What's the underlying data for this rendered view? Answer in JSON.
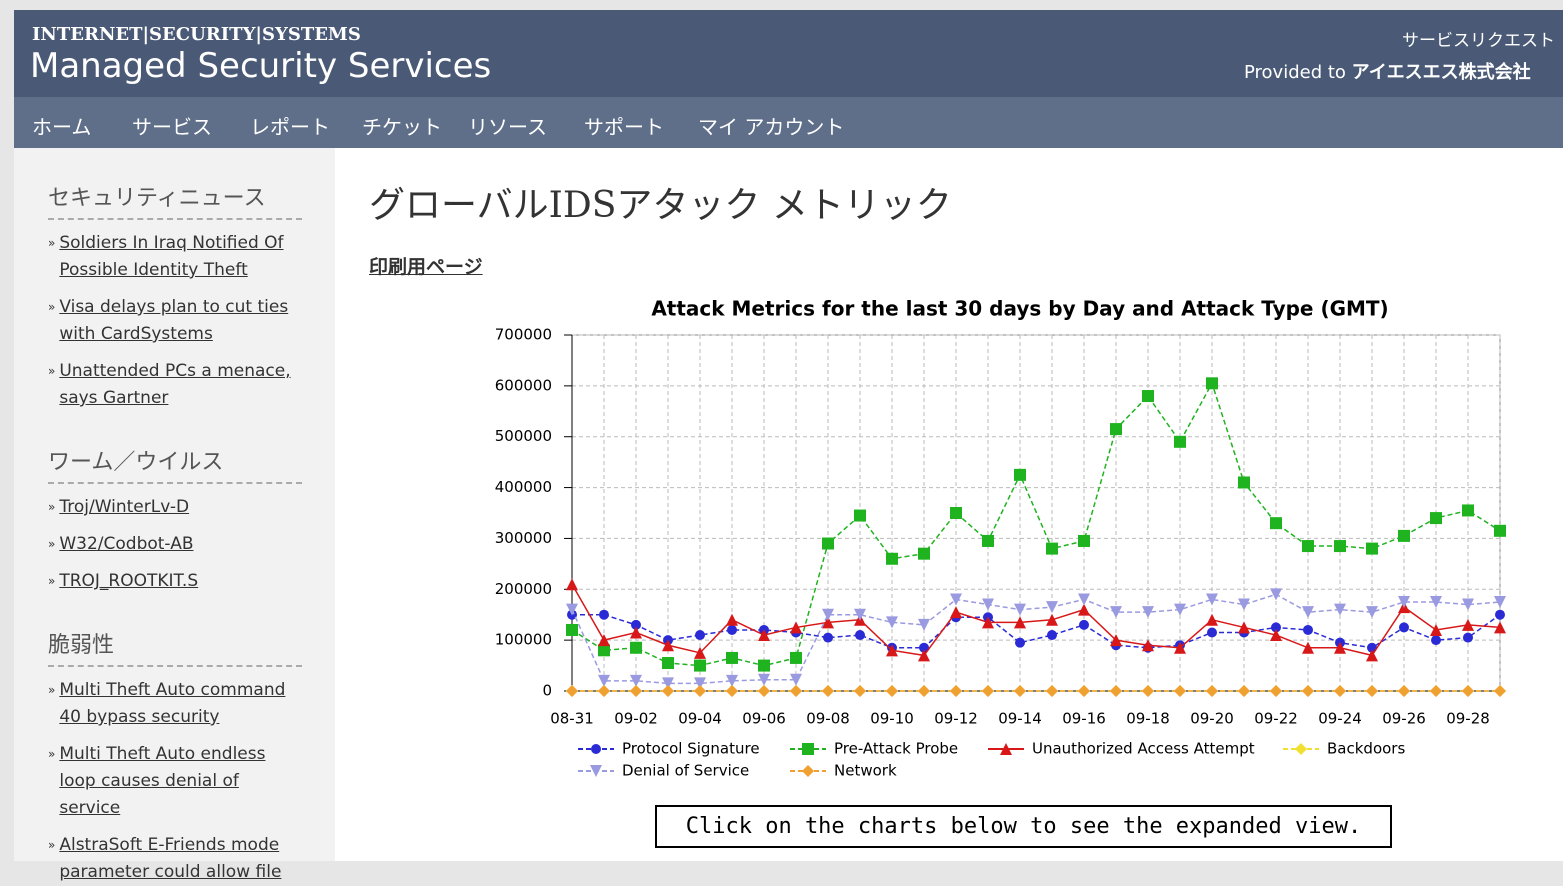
{
  "header": {
    "brand": "INTERNET|SECURITY|SYSTEMS",
    "product": "Managed Security Services",
    "service_request": "サービスリクエスト",
    "provided_to": "Provided to",
    "company": "アイエスエス株式会社"
  },
  "nav": [
    "ホーム",
    "サービス",
    "レポート",
    "チケット",
    "リソース",
    "サポート",
    "マイ アカウント"
  ],
  "sidebar": [
    {
      "title": "セキュリティニュース",
      "items": [
        "Soldiers In Iraq Notified Of Possible Identity Theft",
        "Visa delays plan to cut ties with CardSystems",
        "Unattended PCs a menace, says Gartner"
      ]
    },
    {
      "title": "ワーム／ウイルス",
      "items": [
        "Troj/WinterLv-D",
        "W32/Codbot-AB",
        "TROJ_ROOTKIT.S"
      ]
    },
    {
      "title": "脆弱性",
      "items": [
        "Multi Theft Auto command 40 bypass security",
        "Multi Theft Auto endless loop causes denial of service",
        "AlstraSoft E-Friends mode parameter could allow file"
      ]
    }
  ],
  "page_title": "グローバルIDSアタック メトリック",
  "print_link": "印刷用ページ",
  "chart_data": {
    "type": "line",
    "title": "Attack Metrics for the last 30 days by Day and Attack Type (GMT)",
    "categories": [
      "08-31",
      null,
      "09-02",
      null,
      "09-04",
      null,
      "09-06",
      null,
      "09-08",
      null,
      "09-10",
      null,
      "09-12",
      null,
      "09-14",
      null,
      "09-16",
      null,
      "09-18",
      null,
      "09-20",
      null,
      "09-22",
      null,
      "09-24",
      null,
      "09-26",
      null,
      "09-28",
      null
    ],
    "ylim": [
      0,
      700000
    ],
    "yticks": [
      0,
      100000,
      200000,
      300000,
      400000,
      500000,
      600000,
      700000
    ],
    "grid": true,
    "series": [
      {
        "name": "Protocol Signature",
        "color": "#2b2bd6",
        "marker": "circle",
        "values": [
          150000,
          150000,
          130000,
          100000,
          110000,
          120000,
          120000,
          115000,
          105000,
          110000,
          85000,
          85000,
          145000,
          145000,
          95000,
          110000,
          130000,
          90000,
          85000,
          90000,
          115000,
          115000,
          125000,
          120000,
          95000,
          85000,
          125000,
          100000,
          105000,
          150000
        ]
      },
      {
        "name": "Pre-Attack Probe",
        "color": "#1fb31f",
        "marker": "square",
        "values": [
          120000,
          80000,
          85000,
          55000,
          50000,
          65000,
          50000,
          65000,
          290000,
          345000,
          260000,
          270000,
          350000,
          295000,
          425000,
          280000,
          295000,
          515000,
          580000,
          490000,
          605000,
          410000,
          330000,
          285000,
          285000,
          280000,
          305000,
          340000,
          355000,
          315000
        ]
      },
      {
        "name": "Unauthorized Access Attempt",
        "color": "#d81818",
        "marker": "triangle",
        "values": [
          210000,
          100000,
          115000,
          90000,
          75000,
          140000,
          110000,
          125000,
          135000,
          140000,
          80000,
          70000,
          155000,
          135000,
          135000,
          140000,
          160000,
          100000,
          90000,
          85000,
          140000,
          125000,
          110000,
          85000,
          85000,
          70000,
          165000,
          120000,
          130000,
          125000
        ]
      },
      {
        "name": "Backdoors",
        "color": "#f2e030",
        "marker": "diamond",
        "values": [
          0,
          0,
          0,
          0,
          0,
          0,
          0,
          0,
          0,
          0,
          0,
          0,
          0,
          0,
          0,
          0,
          0,
          0,
          0,
          0,
          0,
          0,
          0,
          0,
          0,
          0,
          0,
          0,
          0,
          0
        ]
      },
      {
        "name": "Denial of Service",
        "color": "#9a9ae0",
        "marker": "down",
        "values": [
          160000,
          20000,
          20000,
          15000,
          15000,
          20000,
          22000,
          22000,
          150000,
          150000,
          135000,
          130000,
          180000,
          170000,
          160000,
          165000,
          180000,
          155000,
          155000,
          160000,
          180000,
          170000,
          190000,
          155000,
          160000,
          155000,
          175000,
          175000,
          170000,
          175000
        ]
      },
      {
        "name": "Network",
        "color": "#f0a030",
        "marker": "diamond",
        "values": [
          0,
          0,
          0,
          0,
          0,
          0,
          0,
          0,
          0,
          0,
          0,
          0,
          0,
          0,
          0,
          0,
          0,
          0,
          0,
          0,
          0,
          0,
          0,
          0,
          0,
          0,
          0,
          0,
          0,
          0
        ]
      }
    ]
  },
  "button": "Click on the charts below to see the expanded view."
}
